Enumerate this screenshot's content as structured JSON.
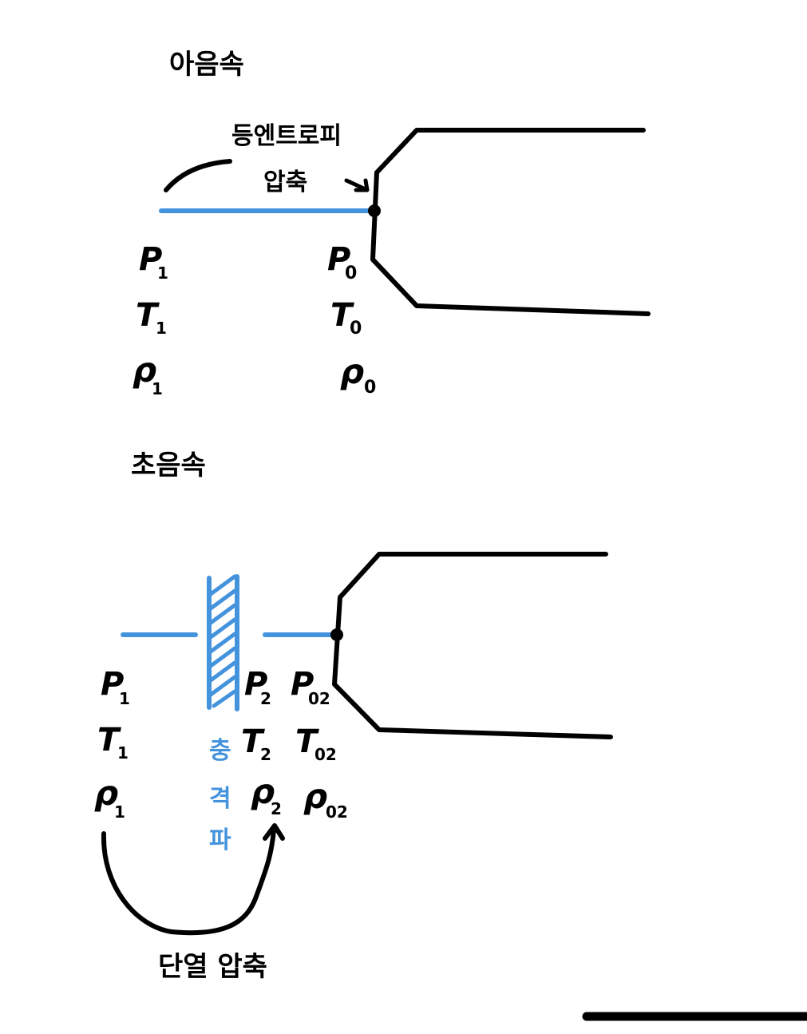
{
  "colors": {
    "ink": "#000000",
    "flow": "#4393dd",
    "background": "#ffffff"
  },
  "subsonic": {
    "heading": "아음속",
    "note_line1": "등엔트로피",
    "note_line2": "압축",
    "upstream": {
      "p": "P",
      "p_sub": "1",
      "t": "T",
      "t_sub": "1",
      "rho": "ρ",
      "rho_sub": "1"
    },
    "stagnation": {
      "p": "P",
      "p_sub": "0",
      "t": "T",
      "t_sub": "0",
      "rho": "ρ",
      "rho_sub": "0"
    }
  },
  "supersonic": {
    "heading": "초음속",
    "shock_label": [
      "충",
      "격",
      "파"
    ],
    "upstream": {
      "p": "P",
      "p_sub": "1",
      "t": "T",
      "t_sub": "1",
      "rho": "ρ",
      "rho_sub": "1"
    },
    "downstream": {
      "p": "P",
      "p_sub": "2",
      "t": "T",
      "t_sub": "2",
      "rho": "ρ",
      "rho_sub": "2"
    },
    "stagnation": {
      "p": "P",
      "p_sub": "02",
      "t": "T",
      "t_sub": "02",
      "rho": "ρ",
      "rho_sub": "02"
    },
    "note": "단열 압축"
  }
}
